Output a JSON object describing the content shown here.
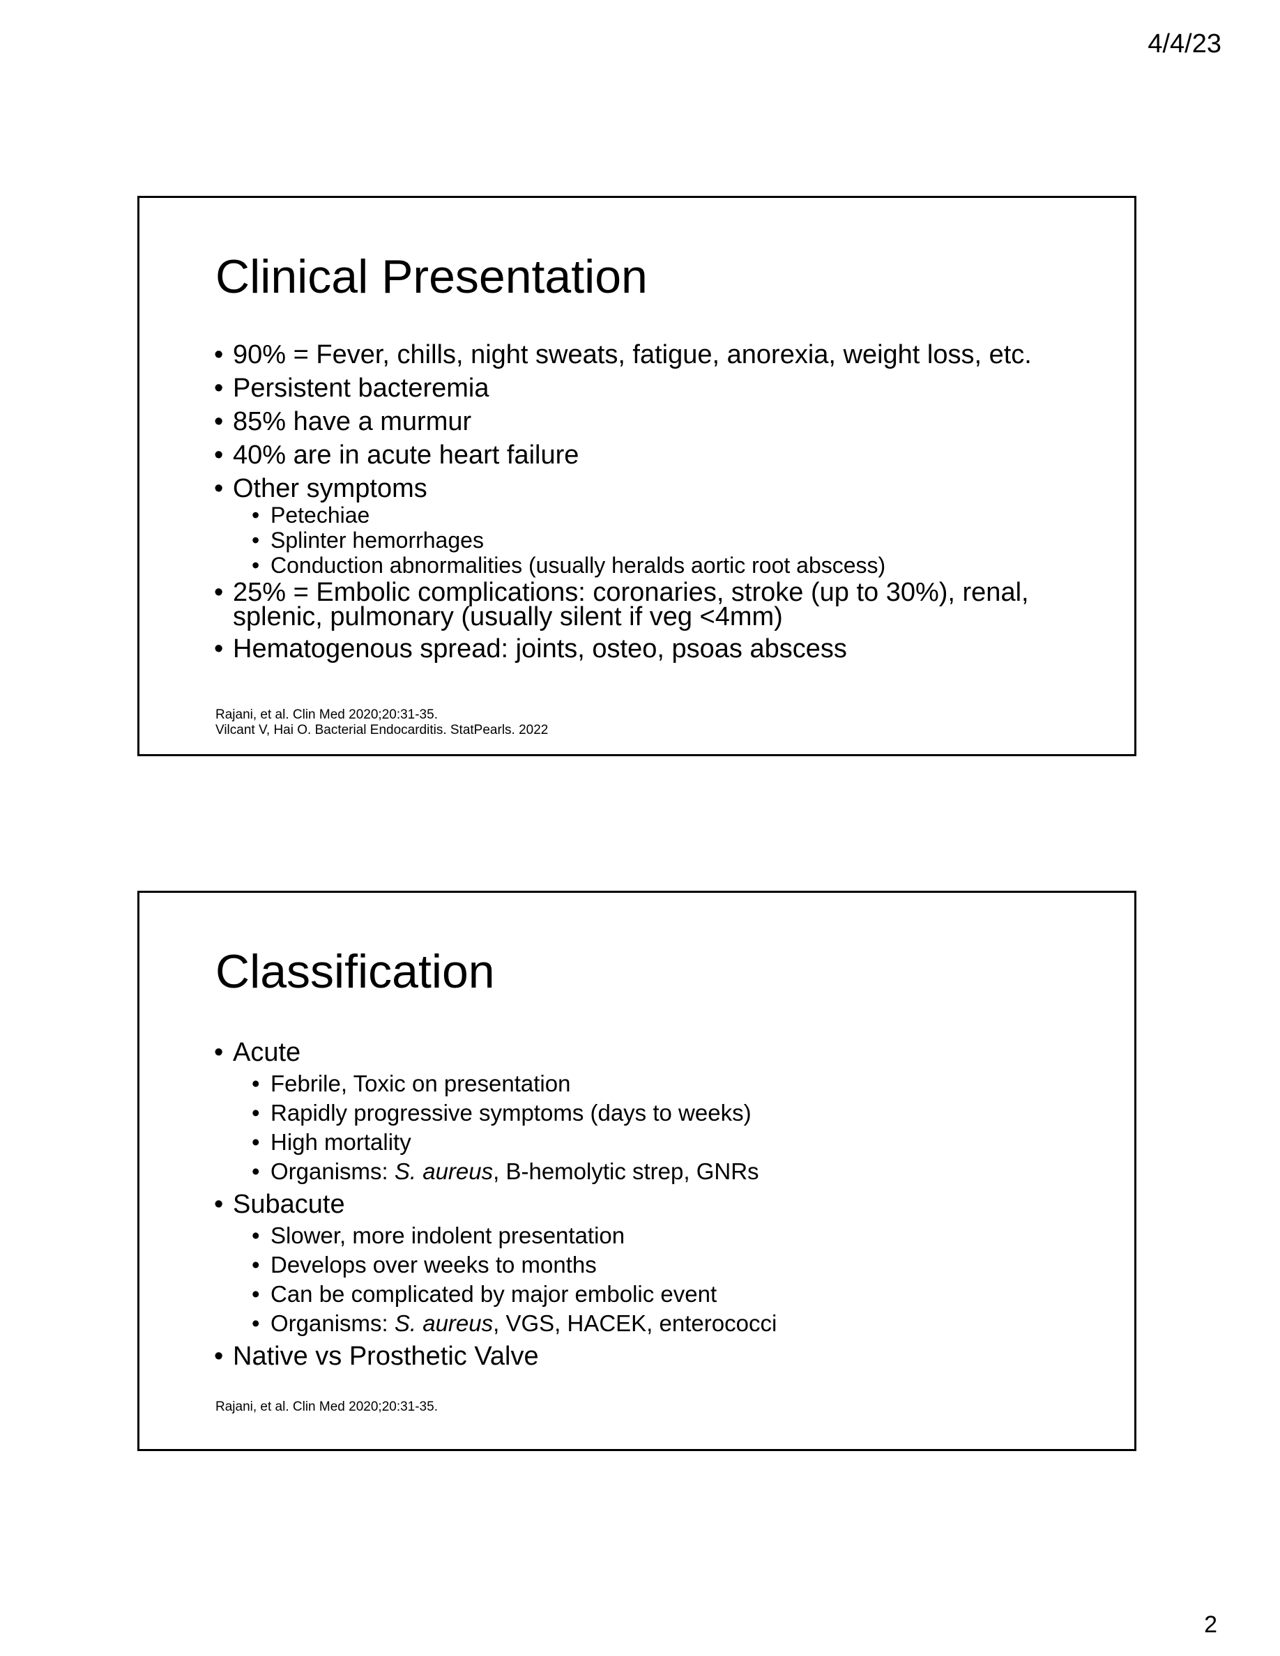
{
  "header": {
    "date": "4/4/23"
  },
  "footer": {
    "page_number": "2"
  },
  "slides": [
    {
      "title": "Clinical Presentation",
      "bullets": [
        {
          "text": "90% = Fever, chills, night sweats, fatigue, anorexia, weight loss, etc."
        },
        {
          "text": "Persistent bacteremia"
        },
        {
          "text": "85% have a murmur"
        },
        {
          "text": "40% are in acute heart failure"
        },
        {
          "text": "Other symptoms",
          "sub": [
            "Petechiae",
            "Splinter hemorrhages",
            "Conduction abnormalities (usually heralds aortic root abscess)"
          ]
        },
        {
          "text": "25% = Embolic complications: coronaries, stroke (up to 30%), renal, splenic, pulmonary (usually silent if veg <4mm)"
        },
        {
          "text": "Hematogenous spread: joints, osteo, psoas abscess"
        }
      ],
      "references": [
        "Rajani, et al. Clin Med 2020;20:31-35.",
        "Vilcant V, Hai O. Bacterial Endocarditis. StatPearls. 2022"
      ]
    },
    {
      "title": "Classification",
      "bullets": [
        {
          "text": "Acute",
          "sub": [
            "Febrile, Toxic on presentation",
            "Rapidly progressive symptoms (days to weeks)",
            "High mortality",
            {
              "prefix": "Organisms: ",
              "italic": "S. aureus",
              "suffix": ", B-hemolytic strep, GNRs"
            }
          ]
        },
        {
          "text": "Subacute",
          "sub": [
            "Slower, more indolent presentation",
            "Develops over weeks to months",
            "Can be complicated by major embolic event",
            {
              "prefix": "Organisms: ",
              "italic": "S. aureus",
              "suffix": ", VGS, HACEK, enterococci"
            }
          ]
        },
        {
          "text": "Native vs Prosthetic Valve"
        }
      ],
      "references": [
        "Rajani, et al. Clin Med 2020;20:31-35."
      ]
    }
  ]
}
